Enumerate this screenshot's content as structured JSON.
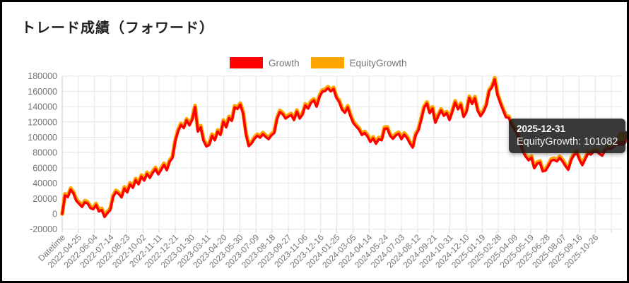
{
  "page": {
    "title": "トレード成績（フォワード）"
  },
  "legend": [
    {
      "label": "Growth",
      "color": "#ff0000"
    },
    {
      "label": "EquityGrowth",
      "color": "#ffa500"
    }
  ],
  "tooltip": {
    "date": "2025-12-31",
    "text": "EquityGrowth: 101082",
    "series": "EquityGrowth",
    "value": 101082
  },
  "chart_data": {
    "type": "line",
    "title": "トレード成績（フォワード）",
    "legend_position": "top-center",
    "grid": true,
    "ylim": [
      -20000,
      180000
    ],
    "y_ticks": [
      180000,
      160000,
      140000,
      120000,
      100000,
      80000,
      60000,
      40000,
      20000,
      0,
      -20000
    ],
    "x_tick_labels": [
      "Datetime",
      "2022-04-25",
      "2022-06-04",
      "2022-07-14",
      "2022-08-23",
      "2022-10-02",
      "2022-11-11",
      "2022-12-21",
      "2023-01-30",
      "2023-03-11",
      "2023-04-20",
      "2023-05-30",
      "2023-07-09",
      "2023-08-18",
      "2023-09-27",
      "2023-11-06",
      "2023-12-16",
      "2024-01-25",
      "2024-03-05",
      "2024-04-14",
      "2024-05-24",
      "2024-07-03",
      "2024-08-12",
      "2024-09-21",
      "2024-10-31",
      "2024-12-10",
      "2025-01-19",
      "2025-02-28",
      "2025-04-09",
      "2025-05-19",
      "2025-06-28",
      "2025-08-07",
      "2025-09-16",
      "2025-10-26"
    ],
    "sampling_note": "series values uniformly sampled left-to-right across the x axis from chart start to 2025-12-31 (values approximate, read from plot)",
    "highlighted_point": {
      "date": "2025-12-31",
      "series": "EquityGrowth",
      "value": 101082
    },
    "series": [
      {
        "name": "Growth",
        "color": "#ff0000",
        "values": [
          0,
          24000,
          22000,
          31500,
          26500,
          17000,
          13000,
          9000,
          15000,
          13500,
          7500,
          6000,
          11500,
          3000,
          5000,
          -4000,
          1000,
          5000,
          22000,
          28500,
          26000,
          21500,
          33000,
          28000,
          38500,
          34000,
          44000,
          38500,
          48500,
          43500,
          52000,
          47000,
          53500,
          58500,
          51500,
          57500,
          64000,
          57000,
          68000,
          73000,
          95000,
          108000,
          116000,
          112000,
          122000,
          115500,
          123000,
          139500,
          107500,
          113000,
          95500,
          88000,
          90000,
          102000,
          96000,
          107500,
          103000,
          120500,
          113000,
          125000,
          121500,
          139000,
          137000,
          142500,
          131000,
          104000,
          88500,
          92000,
          98000,
          102000,
          99500,
          104000,
          100500,
          97500,
          102500,
          105500,
          124000,
          133000,
          130000,
          124500,
          127000,
          129000,
          122500,
          133500,
          124500,
          129500,
          141500,
          137500,
          145000,
          148000,
          140000,
          152500,
          159500,
          160500,
          164000,
          160000,
          163000,
          151500,
          146000,
          136000,
          132000,
          139000,
          127500,
          118500,
          114000,
          110000,
          103000,
          105500,
          101000,
          94000,
          98500,
          91500,
          97500,
          96000,
          111000,
          111500,
          102000,
          98000,
          102500,
          104500,
          97500,
          103500,
          99000,
          92000,
          86500,
          102500,
          109000,
          123000,
          138500,
          144000,
          131500,
          137500,
          119000,
          127500,
          135000,
          128000,
          131500,
          122500,
          133500,
          145500,
          136500,
          142500,
          126500,
          133000,
          151500,
          143500,
          151000,
          134500,
          127500,
          133000,
          141500,
          160000,
          165000,
          175500,
          155000,
          144500,
          135000,
          126000,
          125500,
          115500,
          110500,
          103500,
          93500,
          81000,
          74500,
          70000,
          73500,
          59500,
          65500,
          67000,
          55500,
          56500,
          62500,
          69500,
          70500,
          68500,
          73000,
          68500,
          62500,
          57500,
          70000,
          76500,
          80000,
          70500,
          63500,
          71500,
          79000,
          77500,
          81000,
          81500,
          78500,
          76000,
          82500,
          85500,
          84500,
          87500,
          91000,
          90000,
          95500
        ]
      },
      {
        "name": "EquityGrowth",
        "color": "#ffa500",
        "values": [
          0,
          26000,
          24000,
          33500,
          28500,
          19000,
          15000,
          11000,
          17000,
          15500,
          9500,
          8000,
          13500,
          5000,
          7000,
          -2000,
          3000,
          7000,
          24000,
          30500,
          28000,
          23500,
          35000,
          30000,
          40500,
          36000,
          46000,
          40500,
          50500,
          45500,
          54000,
          49000,
          55500,
          60500,
          53500,
          59500,
          66000,
          59000,
          70000,
          75000,
          97000,
          110000,
          118000,
          114000,
          124000,
          117500,
          125000,
          141500,
          109500,
          115000,
          97500,
          90000,
          92000,
          104000,
          98000,
          109500,
          105000,
          122500,
          115000,
          127000,
          123500,
          141000,
          139000,
          144500,
          133000,
          106000,
          90500,
          94000,
          100000,
          104000,
          101500,
          106000,
          102500,
          99500,
          104500,
          107500,
          126000,
          135000,
          132000,
          126500,
          129000,
          131000,
          124500,
          135500,
          126500,
          131500,
          143500,
          139500,
          147000,
          150000,
          142000,
          154500,
          161500,
          162500,
          166000,
          162000,
          165000,
          153500,
          148000,
          138000,
          134000,
          141000,
          129500,
          120500,
          116000,
          112000,
          105000,
          107500,
          103000,
          96000,
          100500,
          93500,
          99500,
          98000,
          113000,
          113500,
          104000,
          100000,
          104500,
          106500,
          99500,
          105500,
          101000,
          94000,
          88500,
          104500,
          111000,
          125000,
          140500,
          146000,
          133500,
          139500,
          121000,
          129500,
          137000,
          130000,
          133500,
          124500,
          135500,
          147500,
          138500,
          144500,
          128500,
          135000,
          153500,
          145500,
          153000,
          136500,
          129500,
          135000,
          143500,
          162000,
          167000,
          177500,
          157000,
          146500,
          137000,
          128000,
          127500,
          117500,
          112500,
          105500,
          95500,
          83000,
          76500,
          72000,
          75500,
          61500,
          67500,
          69000,
          57500,
          58500,
          64500,
          71500,
          72500,
          70500,
          75000,
          70500,
          64500,
          59500,
          72000,
          78500,
          82000,
          72500,
          65500,
          73500,
          81000,
          79500,
          83000,
          83500,
          80500,
          78000,
          84500,
          87500,
          86500,
          89500,
          93000,
          92000,
          101082
        ]
      }
    ]
  }
}
